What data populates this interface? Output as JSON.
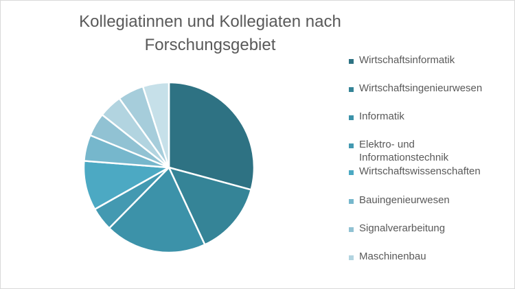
{
  "chart_data": {
    "type": "pie",
    "title_lines": [
      "Kollegiatinnen und Kollegiaten nach",
      "Forschungsgebiet"
    ],
    "legend_position": "right",
    "categories": [
      "Wirtschaftsinformatik",
      "Wirtschaftsingenieurwesen",
      "Informatik",
      "Elektro- und Informationstechnik",
      "Wirtschaftswissenschaften",
      "Bauingenieurwesen",
      "Signalverarbeitung",
      "Maschinenbau"
    ],
    "values": [
      29.5,
      14,
      19.5,
      4.5,
      9.5,
      5,
      4.5,
      4.5
    ],
    "colors": [
      "#2e7283",
      "#358497",
      "#3c92a9",
      "#4399b1",
      "#4ca9c3",
      "#76b7cc",
      "#91c2d3",
      "#b2d4e0"
    ],
    "extra_slices": [
      {
        "value": 5,
        "color": "#a6cddb"
      },
      {
        "value": 5,
        "color": "#c6e0e9"
      }
    ],
    "legend_labels": [
      [
        "Wirtschaftsinformatik"
      ],
      [
        "Wirtschaftsingenieurwesen"
      ],
      [
        "Informatik"
      ],
      [
        "Elektro- und",
        "Informationstechnik"
      ],
      [
        "Wirtschaftswissenschaften"
      ],
      [
        "Bauingenieurwesen"
      ],
      [
        "Signalverarbeitung"
      ],
      [
        "Maschinenbau"
      ]
    ]
  }
}
